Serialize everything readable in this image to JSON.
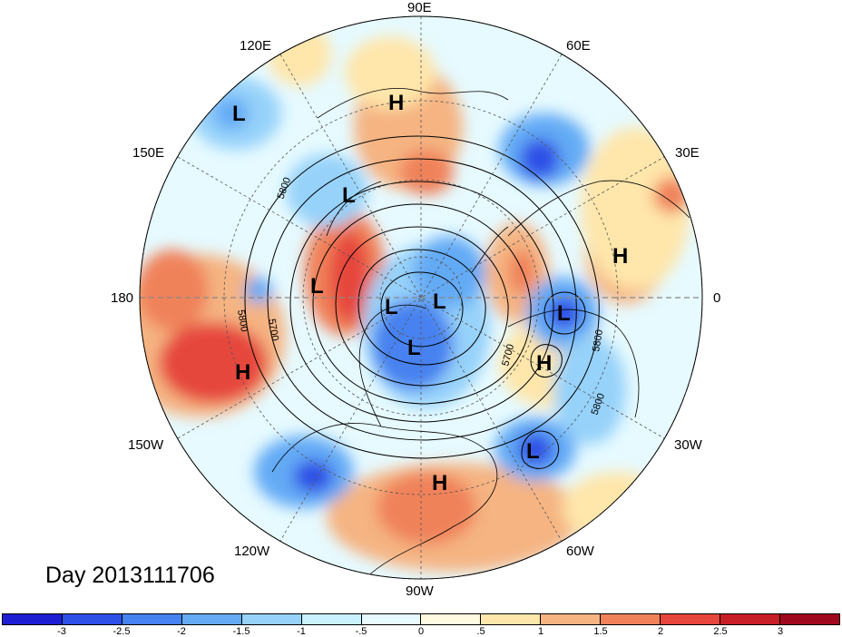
{
  "title": "Day 2013111706",
  "longitude_labels": {
    "lon_90E": "90E",
    "lon_120E": "120E",
    "lon_60E": "60E",
    "lon_150E": "150E",
    "lon_30E": "30E",
    "lon_180": "180",
    "lon_0": "0",
    "lon_150W": "150W",
    "lon_30W": "30W",
    "lon_120W": "120W",
    "lon_60W": "60W",
    "lon_90W": "90W"
  },
  "pressure_centers": [
    "L",
    "H",
    "L",
    "L",
    "L",
    "L",
    "L",
    "H",
    "H",
    "L",
    "H",
    "L",
    "H"
  ],
  "contour_labels": [
    "5800",
    "5800",
    "5700",
    "5700",
    "5800",
    "5800"
  ],
  "colorbar": {
    "ticks": [
      "-3",
      "-2.5",
      "-2",
      "-1.5",
      "-1",
      "-.5",
      "0",
      ".5",
      "1",
      "1.5",
      "2",
      "2.5",
      "3"
    ],
    "colors": [
      "#1e1ed2",
      "#2d50e6",
      "#4682f0",
      "#64aaf5",
      "#96d2fa",
      "#c8f0ff",
      "#e6faff",
      "#fffae0",
      "#ffe6aa",
      "#f5b482",
      "#f0825a",
      "#e6463c",
      "#c81e28",
      "#a00a1e"
    ]
  }
}
